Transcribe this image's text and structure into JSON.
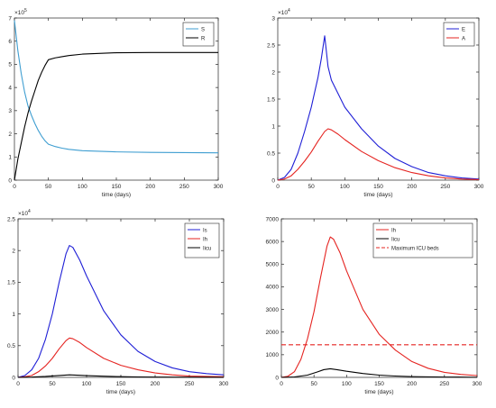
{
  "figure": {
    "layout": "2x2 grid of line charts"
  },
  "chart_data": [
    {
      "type": "line",
      "title": "",
      "xlabel": "time (days)",
      "ylabel": "",
      "xlim": [
        0,
        300
      ],
      "ylim": [
        0,
        7
      ],
      "y_exponent_label": "×10^5",
      "xticks": [
        0,
        50,
        100,
        150,
        200,
        250,
        300
      ],
      "yticks": [
        0,
        1,
        2,
        3,
        4,
        5,
        6,
        7
      ],
      "grid": false,
      "legend_position": "top-right",
      "series": [
        {
          "name": "S",
          "color": "#3f9ed1",
          "points": [
            [
              0,
              6.9
            ],
            [
              5,
              5.6
            ],
            [
              10,
              4.6
            ],
            [
              15,
              3.8
            ],
            [
              20,
              3.2
            ],
            [
              25,
              2.8
            ],
            [
              30,
              2.45
            ],
            [
              35,
              2.15
            ],
            [
              40,
              1.9
            ],
            [
              45,
              1.7
            ],
            [
              50,
              1.55
            ],
            [
              60,
              1.45
            ],
            [
              70,
              1.38
            ],
            [
              80,
              1.33
            ],
            [
              100,
              1.27
            ],
            [
              150,
              1.22
            ],
            [
              200,
              1.2
            ],
            [
              250,
              1.19
            ],
            [
              300,
              1.18
            ]
          ]
        },
        {
          "name": "R",
          "color": "#000000",
          "points": [
            [
              0,
              0
            ],
            [
              5,
              0.9
            ],
            [
              10,
              1.6
            ],
            [
              15,
              2.3
            ],
            [
              20,
              2.9
            ],
            [
              25,
              3.4
            ],
            [
              30,
              3.85
            ],
            [
              35,
              4.3
            ],
            [
              40,
              4.65
            ],
            [
              45,
              4.95
            ],
            [
              50,
              5.2
            ],
            [
              60,
              5.28
            ],
            [
              70,
              5.33
            ],
            [
              80,
              5.38
            ],
            [
              100,
              5.44
            ],
            [
              150,
              5.5
            ],
            [
              200,
              5.51
            ],
            [
              250,
              5.51
            ],
            [
              300,
              5.51
            ]
          ]
        }
      ]
    },
    {
      "type": "line",
      "title": "",
      "xlabel": "time (days)",
      "ylabel": "",
      "xlim": [
        0,
        300
      ],
      "ylim": [
        0,
        3
      ],
      "y_exponent_label": "×10^4",
      "xticks": [
        0,
        50,
        100,
        150,
        200,
        250,
        300
      ],
      "yticks": [
        0,
        0.5,
        1,
        1.5,
        2,
        2.5,
        3
      ],
      "grid": false,
      "legend_position": "top-right",
      "series": [
        {
          "name": "E",
          "color": "#1f1fd6",
          "points": [
            [
              0,
              0
            ],
            [
              10,
              0.05
            ],
            [
              20,
              0.2
            ],
            [
              30,
              0.5
            ],
            [
              40,
              0.9
            ],
            [
              50,
              1.35
            ],
            [
              60,
              1.9
            ],
            [
              65,
              2.25
            ],
            [
              70,
              2.67
            ],
            [
              75,
              2.1
            ],
            [
              80,
              1.85
            ],
            [
              90,
              1.6
            ],
            [
              100,
              1.35
            ],
            [
              125,
              0.95
            ],
            [
              150,
              0.63
            ],
            [
              175,
              0.4
            ],
            [
              200,
              0.25
            ],
            [
              225,
              0.14
            ],
            [
              250,
              0.08
            ],
            [
              275,
              0.04
            ],
            [
              300,
              0.02
            ]
          ]
        },
        {
          "name": "A",
          "color": "#e52421",
          "points": [
            [
              0,
              0
            ],
            [
              10,
              0.02
            ],
            [
              20,
              0.08
            ],
            [
              30,
              0.2
            ],
            [
              40,
              0.35
            ],
            [
              50,
              0.52
            ],
            [
              60,
              0.72
            ],
            [
              70,
              0.9
            ],
            [
              75,
              0.95
            ],
            [
              80,
              0.93
            ],
            [
              90,
              0.85
            ],
            [
              100,
              0.75
            ],
            [
              125,
              0.53
            ],
            [
              150,
              0.36
            ],
            [
              175,
              0.23
            ],
            [
              200,
              0.14
            ],
            [
              225,
              0.08
            ],
            [
              250,
              0.04
            ],
            [
              275,
              0.02
            ],
            [
              300,
              0.01
            ]
          ]
        }
      ]
    },
    {
      "type": "line",
      "title": "",
      "xlabel": "time (days)",
      "ylabel": "",
      "xlim": [
        0,
        300
      ],
      "ylim": [
        0,
        2.5
      ],
      "y_exponent_label": "×10^4",
      "xticks": [
        0,
        50,
        100,
        150,
        200,
        250,
        300
      ],
      "yticks": [
        0,
        0.5,
        1,
        1.5,
        2,
        2.5
      ],
      "grid": false,
      "legend_position": "top-right",
      "series": [
        {
          "name": "Is",
          "color": "#1f1fd6",
          "points": [
            [
              0,
              0
            ],
            [
              10,
              0.03
            ],
            [
              20,
              0.12
            ],
            [
              30,
              0.3
            ],
            [
              40,
              0.6
            ],
            [
              50,
              1.0
            ],
            [
              60,
              1.5
            ],
            [
              70,
              1.95
            ],
            [
              75,
              2.08
            ],
            [
              80,
              2.05
            ],
            [
              90,
              1.85
            ],
            [
              100,
              1.6
            ],
            [
              125,
              1.05
            ],
            [
              150,
              0.67
            ],
            [
              175,
              0.41
            ],
            [
              200,
              0.25
            ],
            [
              225,
              0.15
            ],
            [
              250,
              0.09
            ],
            [
              275,
              0.06
            ],
            [
              300,
              0.04
            ]
          ]
        },
        {
          "name": "Ih",
          "color": "#e52421",
          "points": [
            [
              0,
              0
            ],
            [
              10,
              0.01
            ],
            [
              20,
              0.03
            ],
            [
              30,
              0.09
            ],
            [
              40,
              0.18
            ],
            [
              50,
              0.3
            ],
            [
              60,
              0.45
            ],
            [
              70,
              0.58
            ],
            [
              75,
              0.62
            ],
            [
              80,
              0.61
            ],
            [
              90,
              0.55
            ],
            [
              100,
              0.47
            ],
            [
              125,
              0.3
            ],
            [
              150,
              0.19
            ],
            [
              175,
              0.12
            ],
            [
              200,
              0.07
            ],
            [
              225,
              0.04
            ],
            [
              250,
              0.02
            ],
            [
              275,
              0.015
            ],
            [
              300,
              0.01
            ]
          ]
        },
        {
          "name": "Iicu",
          "color": "#000000",
          "points": [
            [
              0,
              0
            ],
            [
              20,
              0.005
            ],
            [
              40,
              0.015
            ],
            [
              60,
              0.03
            ],
            [
              75,
              0.04
            ],
            [
              90,
              0.033
            ],
            [
              100,
              0.028
            ],
            [
              125,
              0.018
            ],
            [
              150,
              0.011
            ],
            [
              175,
              0.007
            ],
            [
              200,
              0.004
            ],
            [
              250,
              0.002
            ],
            [
              300,
              0.001
            ]
          ]
        }
      ]
    },
    {
      "type": "line",
      "title": "",
      "xlabel": "time (days)",
      "ylabel": "",
      "xlim": [
        0,
        300
      ],
      "ylim": [
        0,
        7000
      ],
      "xticks": [
        0,
        50,
        100,
        150,
        200,
        250,
        300
      ],
      "yticks": [
        0,
        1000,
        2000,
        3000,
        4000,
        5000,
        6000,
        7000
      ],
      "grid": false,
      "legend_position": "top-right",
      "series": [
        {
          "name": "Ih",
          "color": "#e52421",
          "points": [
            [
              0,
              0
            ],
            [
              10,
              50
            ],
            [
              20,
              250
            ],
            [
              30,
              800
            ],
            [
              40,
              1700
            ],
            [
              50,
              2900
            ],
            [
              60,
              4400
            ],
            [
              70,
              5800
            ],
            [
              75,
              6200
            ],
            [
              80,
              6100
            ],
            [
              90,
              5500
            ],
            [
              100,
              4700
            ],
            [
              125,
              3000
            ],
            [
              150,
              1900
            ],
            [
              175,
              1200
            ],
            [
              200,
              700
            ],
            [
              225,
              400
            ],
            [
              250,
              220
            ],
            [
              275,
              130
            ],
            [
              300,
              80
            ]
          ]
        },
        {
          "name": "Iicu",
          "color": "#000000",
          "points": [
            [
              0,
              0
            ],
            [
              20,
              20
            ],
            [
              40,
              100
            ],
            [
              55,
              240
            ],
            [
              65,
              340
            ],
            [
              75,
              380
            ],
            [
              85,
              340
            ],
            [
              100,
              270
            ],
            [
              125,
              170
            ],
            [
              150,
              100
            ],
            [
              175,
              60
            ],
            [
              200,
              35
            ],
            [
              250,
              15
            ],
            [
              300,
              5
            ]
          ]
        },
        {
          "name": "Maximum ICU beds",
          "color": "#e52421",
          "dashed": true,
          "points": [
            [
              0,
              1440
            ],
            [
              300,
              1440
            ]
          ]
        }
      ]
    }
  ]
}
